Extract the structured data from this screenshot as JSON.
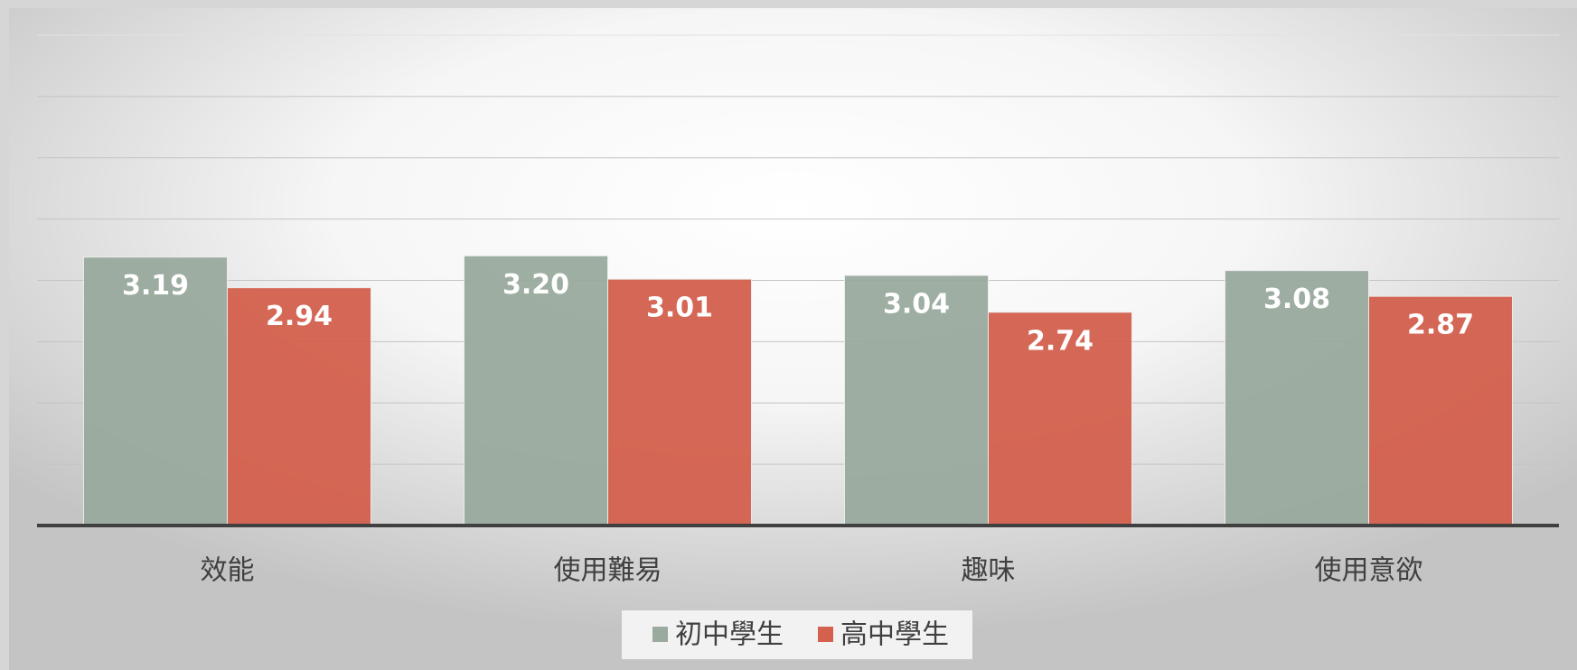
{
  "chart_data": {
    "type": "bar",
    "categories": [
      "效能",
      "使用難易",
      "趣味",
      "使用意欲"
    ],
    "series": [
      {
        "name": "初中學生",
        "color": "#9aaa9e",
        "values": [
          3.19,
          3.2,
          3.04,
          3.08
        ],
        "value_labels": [
          "3.19",
          "3.20",
          "3.04",
          "3.08"
        ]
      },
      {
        "name": "高中學生",
        "color": "#d4604e",
        "values": [
          2.94,
          3.01,
          2.74,
          2.87
        ],
        "value_labels": [
          "2.94",
          "3.01",
          "2.74",
          "2.87"
        ]
      }
    ],
    "ylim": [
      1,
      5
    ],
    "yticks": [
      1,
      1.5,
      2,
      2.5,
      3,
      3.5,
      4,
      4.5,
      5
    ],
    "grid": true,
    "legend": "bottom"
  }
}
